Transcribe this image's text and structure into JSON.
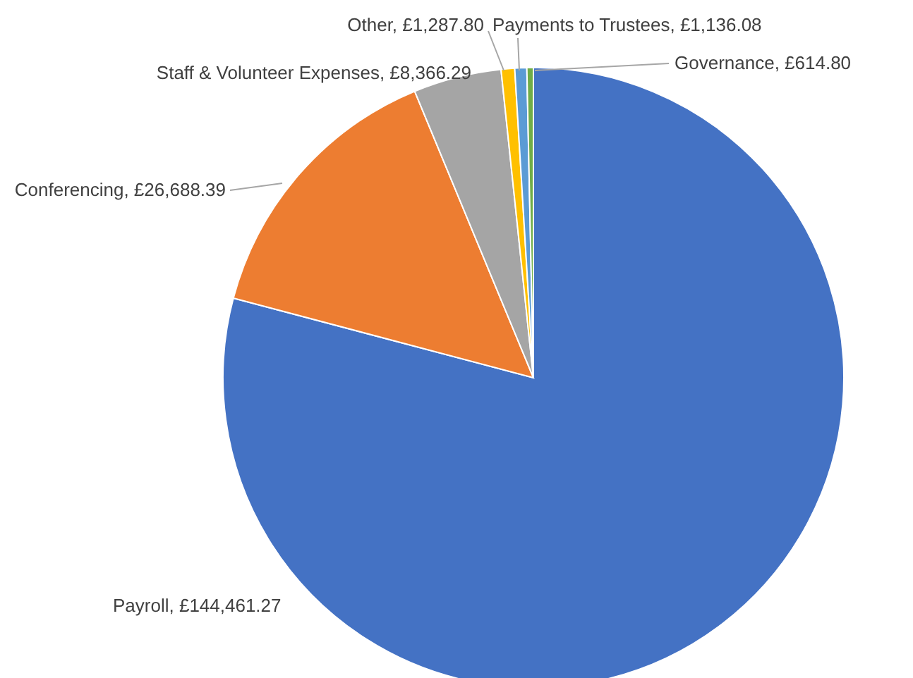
{
  "chart_data": {
    "type": "pie",
    "categories": [
      "Payroll",
      "Conferencing",
      "Staff & Volunteer Expenses",
      "Other",
      "Payments to Trustees",
      "Governance"
    ],
    "values": [
      144461.27,
      26688.39,
      8366.29,
      1287.8,
      1136.08,
      614.8
    ],
    "value_labels": [
      "£144,461.27",
      "£26,688.39",
      "£8,366.29",
      "£1,287.80",
      "£1,136.08",
      "£614.80"
    ],
    "colors": [
      "#4472c4",
      "#ed7d31",
      "#a5a5a5",
      "#ffc000",
      "#5b9bd5",
      "#70ad47"
    ]
  }
}
